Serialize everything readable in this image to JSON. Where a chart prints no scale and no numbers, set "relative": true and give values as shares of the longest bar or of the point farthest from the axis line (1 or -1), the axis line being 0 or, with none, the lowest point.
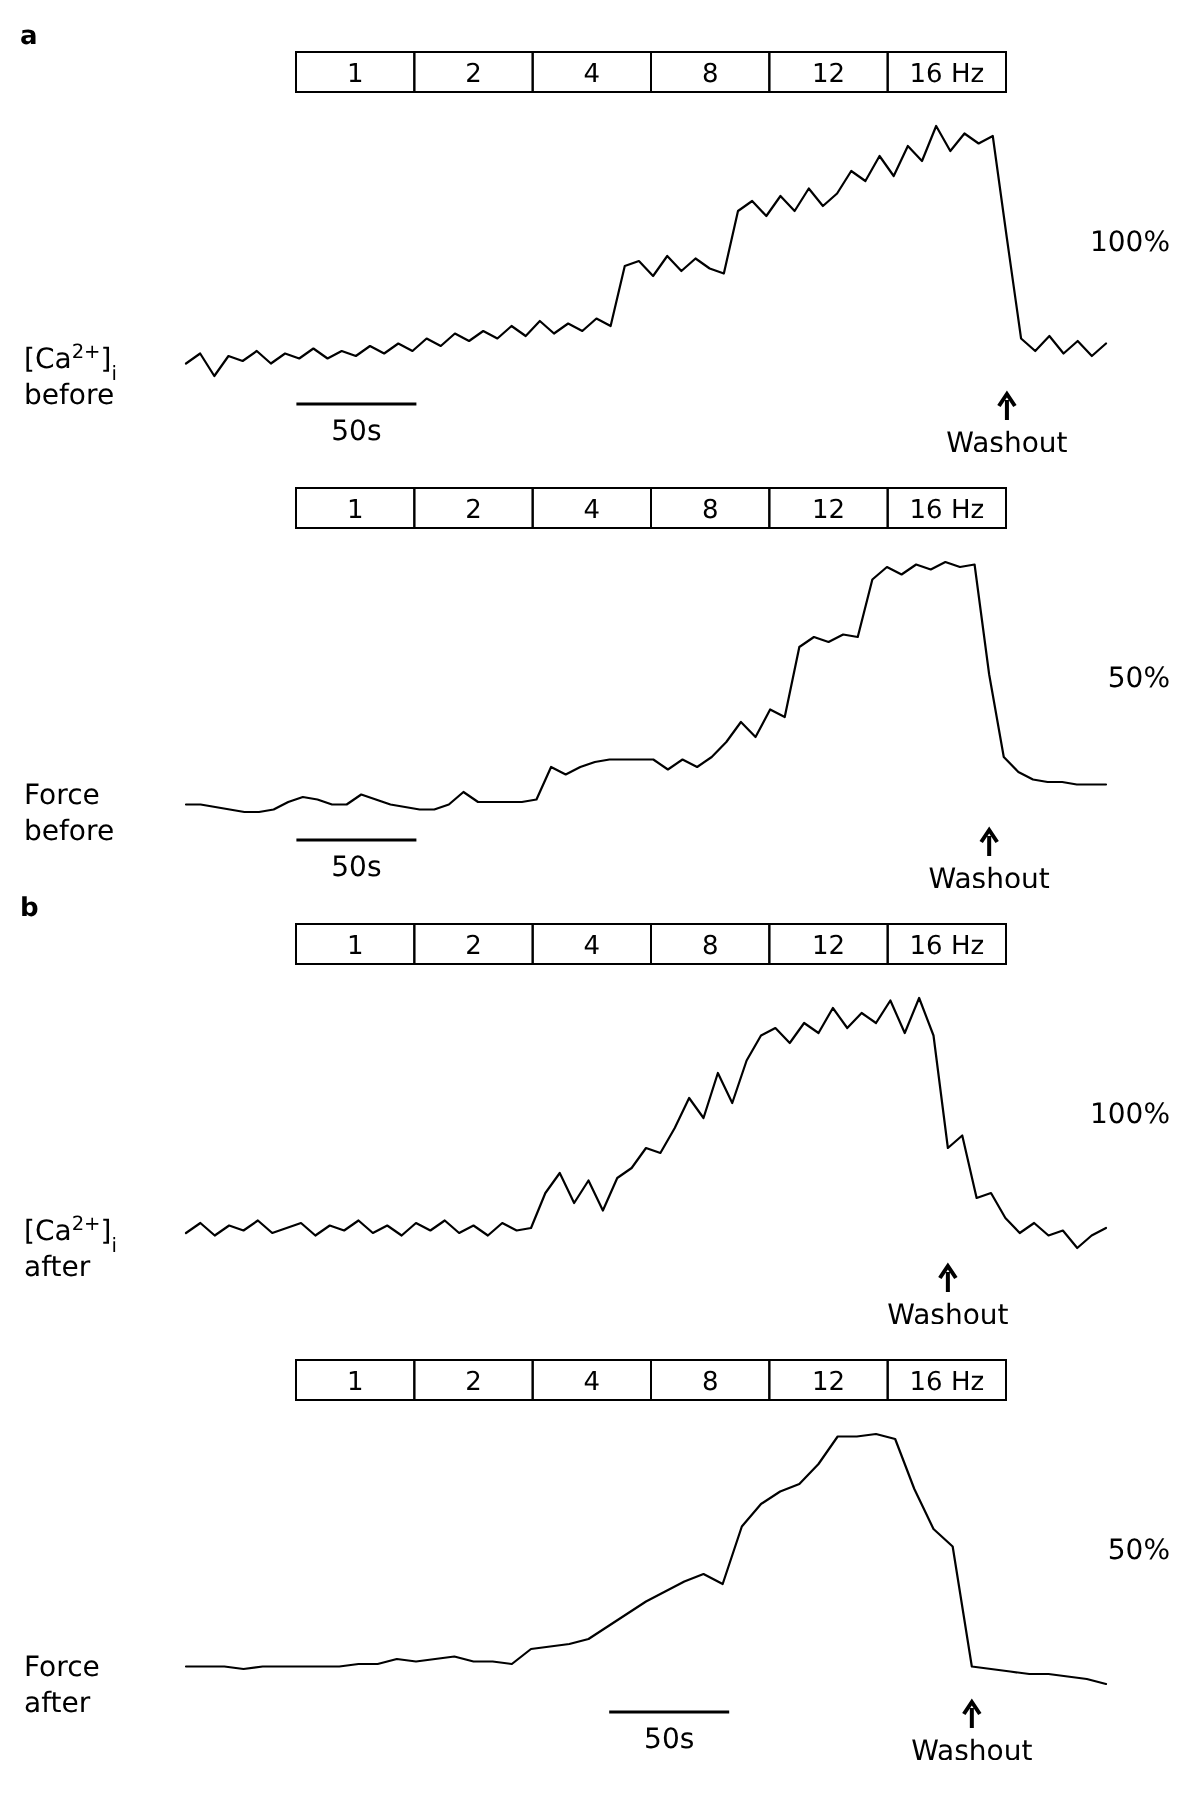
{
  "chart_data": [
    {
      "type": "line",
      "title": "a",
      "ylabel": "[Ca$^{2+}$]$_{i}$ before",
      "relative": true,
      "color": "#000000",
      "categories": [
        null,
        null,
        null,
        null,
        null,
        null,
        null,
        null,
        null,
        null,
        null,
        null,
        null,
        null,
        null,
        null,
        null,
        null,
        null,
        null,
        null,
        null,
        null,
        null,
        null,
        null,
        null,
        null,
        null,
        null,
        null,
        null,
        null,
        null,
        null,
        null,
        null,
        null,
        null,
        null,
        null,
        null,
        null,
        null,
        null,
        null,
        null,
        null,
        null,
        null,
        null,
        null,
        null,
        null,
        null,
        null,
        null,
        null,
        null,
        null,
        null,
        null,
        null,
        null,
        null,
        null
      ],
      "values": [
        0.05,
        0.09,
        0,
        0.08,
        0.06,
        0.1,
        0.05,
        0.09,
        0.07,
        0.11,
        0.07,
        0.1,
        0.08,
        0.12,
        0.09,
        0.13,
        0.1,
        0.15,
        0.12,
        0.17,
        0.14,
        0.18,
        0.15,
        0.2,
        0.16,
        0.22,
        0.17,
        0.21,
        0.18,
        0.23,
        0.2,
        0.44,
        0.46,
        0.4,
        0.48,
        0.42,
        0.47,
        0.43,
        0.41,
        0.66,
        0.7,
        0.64,
        0.72,
        0.66,
        0.75,
        0.68,
        0.73,
        0.82,
        0.78,
        0.88,
        0.8,
        0.92,
        0.86,
        1,
        0.9,
        0.97,
        0.93,
        0.96,
        0.55,
        0.15,
        0.1,
        0.16,
        0.09,
        0.14,
        0.08,
        0.13
      ],
      "annotations": [
        "1",
        "2",
        "4",
        "8",
        "12",
        "16 Hz",
        "100%",
        "Washout",
        "50s"
      ]
    },
    {
      "type": "line",
      "ylabel": "Force before",
      "relative": true,
      "color": "#000000",
      "categories": [
        null,
        null,
        null,
        null,
        null,
        null,
        null,
        null,
        null,
        null,
        null,
        null,
        null,
        null,
        null,
        null,
        null,
        null,
        null,
        null,
        null,
        null,
        null,
        null,
        null,
        null,
        null,
        null,
        null,
        null,
        null,
        null,
        null,
        null,
        null,
        null,
        null,
        null,
        null,
        null,
        null,
        null,
        null,
        null,
        null,
        null,
        null,
        null,
        null,
        null,
        null,
        null,
        null,
        null,
        null,
        null,
        null,
        null,
        null,
        null,
        null,
        null,
        null,
        null
      ],
      "values": [
        0.03,
        0.03,
        0.02,
        0.01,
        0,
        0,
        0.01,
        0.04,
        0.06,
        0.05,
        0.03,
        0.03,
        0.07,
        0.05,
        0.03,
        0.02,
        0.01,
        0.01,
        0.03,
        0.08,
        0.04,
        0.04,
        0.04,
        0.04,
        0.05,
        0.18,
        0.15,
        0.18,
        0.2,
        0.21,
        0.21,
        0.21,
        0.21,
        0.17,
        0.21,
        0.18,
        0.22,
        0.28,
        0.36,
        0.3,
        0.41,
        0.38,
        0.66,
        0.7,
        0.68,
        0.71,
        0.7,
        0.93,
        0.98,
        0.95,
        0.99,
        0.97,
        1,
        0.98,
        0.99,
        0.55,
        0.22,
        0.16,
        0.13,
        0.12,
        0.12,
        0.11,
        0.11,
        0.11
      ],
      "annotations": [
        "1",
        "2",
        "4",
        "8",
        "12",
        "16 Hz",
        "50%",
        "Washout",
        "50s"
      ]
    },
    {
      "type": "line",
      "title": "b",
      "ylabel": "[Ca$^{2+}$]$_{i}$ after",
      "relative": true,
      "color": "#000000",
      "categories": [
        null,
        null,
        null,
        null,
        null,
        null,
        null,
        null,
        null,
        null,
        null,
        null,
        null,
        null,
        null,
        null,
        null,
        null,
        null,
        null,
        null,
        null,
        null,
        null,
        null,
        null,
        null,
        null,
        null,
        null,
        null,
        null,
        null,
        null,
        null,
        null,
        null,
        null,
        null,
        null,
        null,
        null,
        null,
        null,
        null,
        null,
        null,
        null,
        null,
        null,
        null,
        null,
        null,
        null,
        null,
        null,
        null,
        null,
        null,
        null,
        null,
        null,
        null,
        null,
        null
      ],
      "values": [
        0.06,
        0.1,
        0.05,
        0.09,
        0.07,
        0.11,
        0.06,
        0.08,
        0.1,
        0.05,
        0.09,
        0.07,
        0.11,
        0.06,
        0.09,
        0.05,
        0.1,
        0.07,
        0.11,
        0.06,
        0.09,
        0.05,
        0.1,
        0.07,
        0.08,
        0.22,
        0.3,
        0.18,
        0.27,
        0.15,
        0.28,
        0.32,
        0.4,
        0.38,
        0.48,
        0.6,
        0.52,
        0.7,
        0.58,
        0.75,
        0.85,
        0.88,
        0.82,
        0.9,
        0.86,
        0.96,
        0.88,
        0.94,
        0.9,
        0.99,
        0.86,
        1,
        0.85,
        0.4,
        0.45,
        0.2,
        0.22,
        0.12,
        0.06,
        0.1,
        0.05,
        0.07,
        0,
        0.05,
        0.08
      ],
      "annotations": [
        "1",
        "2",
        "4",
        "8",
        "12",
        "16 Hz",
        "100%",
        "Washout"
      ]
    },
    {
      "type": "line",
      "ylabel": "Force after",
      "relative": true,
      "color": "#000000",
      "categories": [
        null,
        null,
        null,
        null,
        null,
        null,
        null,
        null,
        null,
        null,
        null,
        null,
        null,
        null,
        null,
        null,
        null,
        null,
        null,
        null,
        null,
        null,
        null,
        null,
        null,
        null,
        null,
        null,
        null,
        null,
        null,
        null,
        null,
        null,
        null,
        null,
        null,
        null,
        null,
        null,
        null,
        null,
        null,
        null,
        null,
        null,
        null,
        null,
        null
      ],
      "values": [
        0.07,
        0.07,
        0.07,
        0.06,
        0.07,
        0.07,
        0.07,
        0.07,
        0.07,
        0.08,
        0.08,
        0.1,
        0.09,
        0.1,
        0.11,
        0.09,
        0.09,
        0.08,
        0.14,
        0.15,
        0.16,
        0.18,
        0.23,
        0.28,
        0.33,
        0.37,
        0.41,
        0.44,
        0.4,
        0.63,
        0.72,
        0.77,
        0.8,
        0.88,
        0.99,
        0.99,
        1,
        0.98,
        0.78,
        0.62,
        0.55,
        0.07,
        0.06,
        0.05,
        0.04,
        0.04,
        0.03,
        0.02,
        0
      ],
      "annotations": [
        "1",
        "2",
        "4",
        "8",
        "12",
        "16 Hz",
        "50%",
        "Washout",
        "50s"
      ]
    }
  ]
}
